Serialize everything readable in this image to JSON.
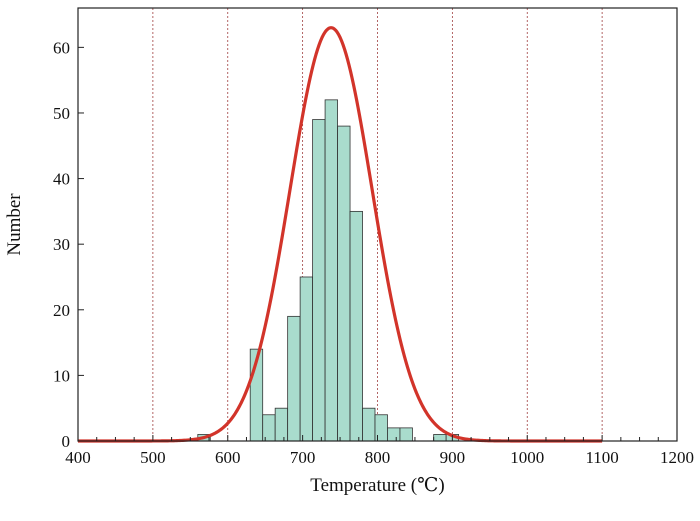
{
  "chart_data": {
    "type": "bar",
    "xlabel": "Temperature (℃)",
    "ylabel": "Number",
    "xlim": [
      400,
      1200
    ],
    "ylim": [
      0,
      66
    ],
    "x_ticks": [
      400,
      500,
      600,
      700,
      800,
      900,
      1000,
      1100,
      1200
    ],
    "y_ticks": [
      0,
      10,
      20,
      30,
      40,
      50,
      60
    ],
    "grid": "vertical dashed at x ticks",
    "bin_width": 16.67,
    "bins": [
      {
        "start": 560,
        "value": 1
      },
      {
        "start": 630,
        "value": 14
      },
      {
        "start": 646.67,
        "value": 4
      },
      {
        "start": 663.33,
        "value": 5
      },
      {
        "start": 680,
        "value": 19
      },
      {
        "start": 696.67,
        "value": 25
      },
      {
        "start": 713.33,
        "value": 49
      },
      {
        "start": 730,
        "value": 52
      },
      {
        "start": 746.67,
        "value": 48
      },
      {
        "start": 763.33,
        "value": 35
      },
      {
        "start": 780,
        "value": 5
      },
      {
        "start": 796.67,
        "value": 4
      },
      {
        "start": 813.33,
        "value": 2
      },
      {
        "start": 830,
        "value": 2
      },
      {
        "start": 875,
        "value": 1
      },
      {
        "start": 891.67,
        "value": 1
      }
    ],
    "fit_curve": {
      "type": "normal",
      "mean": 738,
      "sd": 55,
      "peak": 63,
      "x_range": [
        400,
        1100
      ]
    },
    "colors": {
      "bar_fill": "#a9dccd",
      "bar_stroke": "#333333",
      "curve": "#d2342a",
      "grid": "#a04040"
    }
  }
}
